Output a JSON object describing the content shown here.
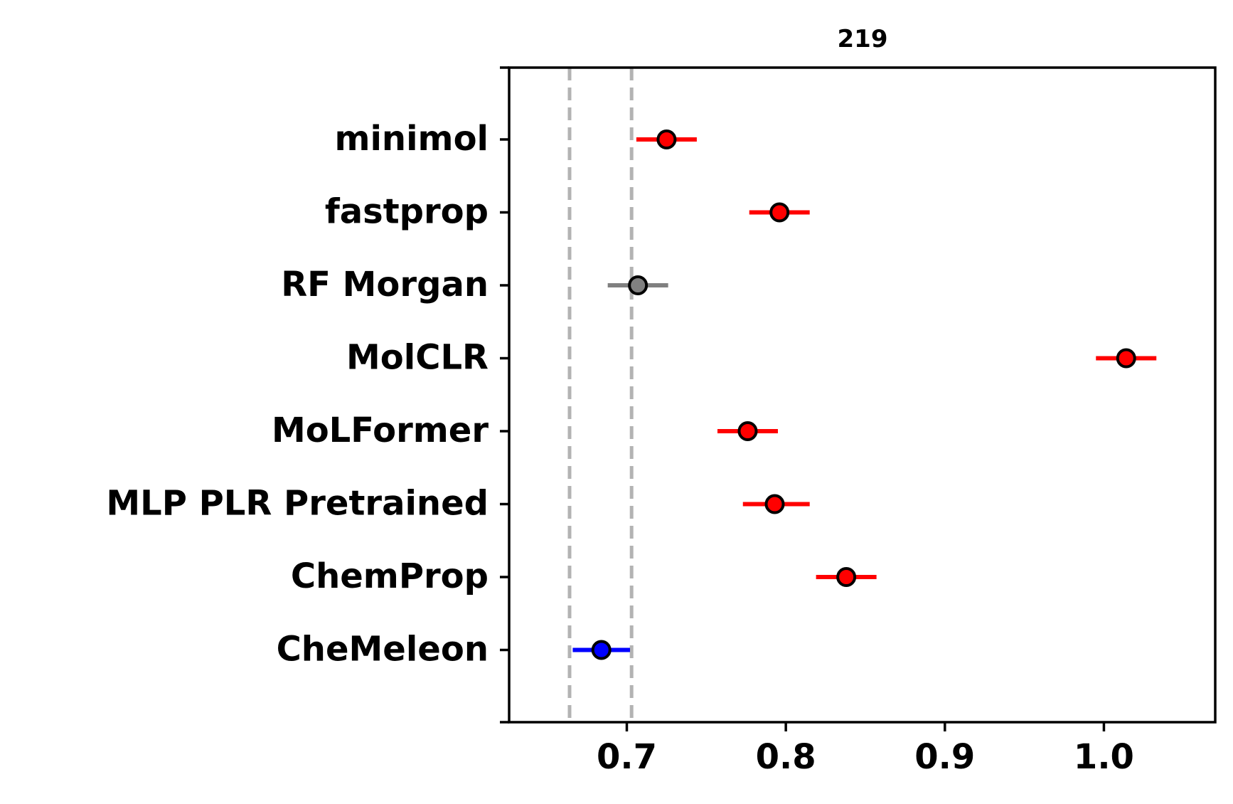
{
  "chart_data": {
    "type": "scatter",
    "title": "219",
    "xlabel": "",
    "ylabel": "",
    "xlim": [
      0.626,
      1.07
    ],
    "xticks": [
      0.7,
      0.8,
      0.9,
      1.0
    ],
    "xtick_labels": [
      "0.7",
      "0.8",
      "0.9",
      "1.0"
    ],
    "grid": false,
    "legend": "none",
    "reference_lines": [
      {
        "x": 0.664,
        "style": "dashed",
        "color": "#b3b3b3"
      },
      {
        "x": 0.703,
        "style": "dashed",
        "color": "#b3b3b3"
      }
    ],
    "models": [
      {
        "label": "minimol",
        "value": 0.725,
        "err_low": 0.706,
        "err_high": 0.744,
        "color": "#ff0000"
      },
      {
        "label": "fastprop",
        "value": 0.796,
        "err_low": 0.777,
        "err_high": 0.815,
        "color": "#ff0000"
      },
      {
        "label": "RF Morgan",
        "value": 0.707,
        "err_low": 0.688,
        "err_high": 0.726,
        "color": "#808080"
      },
      {
        "label": "MolCLR",
        "value": 1.014,
        "err_low": 0.995,
        "err_high": 1.033,
        "color": "#ff0000"
      },
      {
        "label": "MoLFormer",
        "value": 0.776,
        "err_low": 0.757,
        "err_high": 0.795,
        "color": "#ff0000"
      },
      {
        "label": "MLP PLR Pretrained",
        "value": 0.793,
        "err_low": 0.773,
        "err_high": 0.815,
        "color": "#ff0000"
      },
      {
        "label": "ChemProp",
        "value": 0.838,
        "err_low": 0.819,
        "err_high": 0.857,
        "color": "#ff0000"
      },
      {
        "label": "CheMeleon",
        "value": 0.684,
        "err_low": 0.666,
        "err_high": 0.702,
        "color": "#0000ff"
      }
    ]
  }
}
